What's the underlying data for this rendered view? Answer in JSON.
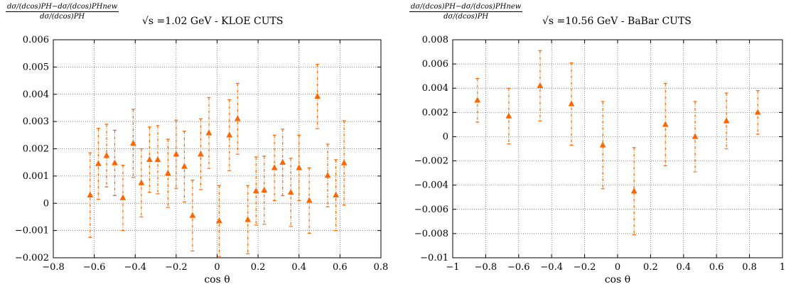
{
  "chart_data": [
    {
      "type": "scatter",
      "title": "√s =1.02 GeV - KLOE CUTS",
      "ylabel_numerator": "dσ/(dcos)PH−dσ/(dcos)PHnew",
      "ylabel_denominator": "dσ/(dcos)PH",
      "xlabel": "cos θ",
      "xlim": [
        -0.8,
        0.8
      ],
      "ylim": [
        -0.002,
        0.006
      ],
      "xticks": [
        -0.8,
        -0.6,
        -0.4,
        -0.2,
        0,
        0.2,
        0.4,
        0.6,
        0.8
      ],
      "xtick_labels": [
        "−0.8",
        "−0.6",
        "−0.4",
        "−0.2",
        "0",
        "0.2",
        "0.4",
        "0.6",
        "0.8"
      ],
      "yticks": [
        -0.002,
        -0.001,
        0,
        0.001,
        0.002,
        0.003,
        0.004,
        0.005,
        0.006
      ],
      "ytick_labels": [
        "−0.002",
        "−0.001",
        "0",
        "0.001",
        "0.002",
        "0.003",
        "0.004",
        "0.005",
        "0.006"
      ],
      "grid": true,
      "color": "#ff6600",
      "points": [
        {
          "x": -0.62,
          "y": 0.0003,
          "err": 0.00155
        },
        {
          "x": -0.58,
          "y": 0.00145,
          "err": 0.0013
        },
        {
          "x": -0.54,
          "y": 0.00175,
          "err": 0.00115
        },
        {
          "x": -0.5,
          "y": 0.00148,
          "err": 0.0012
        },
        {
          "x": -0.46,
          "y": 0.0002,
          "err": 0.0012
        },
        {
          "x": -0.41,
          "y": 0.0022,
          "err": 0.00125
        },
        {
          "x": -0.37,
          "y": 0.00075,
          "err": 0.00125
        },
        {
          "x": -0.33,
          "y": 0.0016,
          "err": 0.0012
        },
        {
          "x": -0.29,
          "y": 0.0016,
          "err": 0.00125
        },
        {
          "x": -0.24,
          "y": 0.0011,
          "err": 0.00125
        },
        {
          "x": -0.2,
          "y": 0.0018,
          "err": 0.00125
        },
        {
          "x": -0.16,
          "y": 0.00135,
          "err": 0.0013
        },
        {
          "x": -0.12,
          "y": -0.00045,
          "err": 0.0013
        },
        {
          "x": -0.08,
          "y": 0.0018,
          "err": 0.0013
        },
        {
          "x": -0.04,
          "y": 0.00258,
          "err": 0.0013
        },
        {
          "x": 0.01,
          "y": -0.00065,
          "err": 0.0013
        },
        {
          "x": 0.06,
          "y": 0.0025,
          "err": 0.0013
        },
        {
          "x": 0.1,
          "y": 0.0031,
          "err": 0.0013
        },
        {
          "x": 0.15,
          "y": -0.0006,
          "err": 0.00125
        },
        {
          "x": 0.19,
          "y": 0.00045,
          "err": 0.00125
        },
        {
          "x": 0.23,
          "y": 0.00048,
          "err": 0.00125
        },
        {
          "x": 0.28,
          "y": 0.0013,
          "err": 0.0012
        },
        {
          "x": 0.32,
          "y": 0.0015,
          "err": 0.00122
        },
        {
          "x": 0.36,
          "y": 0.0004,
          "err": 0.00125
        },
        {
          "x": 0.4,
          "y": 0.0013,
          "err": 0.0012
        },
        {
          "x": 0.45,
          "y": 0.0001,
          "err": 0.0012
        },
        {
          "x": 0.49,
          "y": 0.00392,
          "err": 0.00118
        },
        {
          "x": 0.54,
          "y": 0.00102,
          "err": 0.00115
        },
        {
          "x": 0.58,
          "y": 0.0003,
          "err": 0.0013
        },
        {
          "x": 0.62,
          "y": 0.00148,
          "err": 0.00155
        }
      ]
    },
    {
      "type": "scatter",
      "title": "√s =10.56 GeV - BaBar CUTS",
      "ylabel_numerator": "dσ/(dcos)PH−dσ/(dcos)PHnew",
      "ylabel_denominator": "dσ/(dcos)PH",
      "xlabel": "cos θ",
      "xlim": [
        -1,
        1
      ],
      "ylim": [
        -0.01,
        0.008
      ],
      "xticks": [
        -1,
        -0.8,
        -0.6,
        -0.4,
        -0.2,
        0,
        0.2,
        0.4,
        0.6,
        0.8,
        1
      ],
      "xtick_labels": [
        "−1",
        "−0.8",
        "−0.6",
        "−0.4",
        "−0.2",
        "0",
        "0.2",
        "0.4",
        "0.6",
        "0.8",
        "1"
      ],
      "yticks": [
        -0.01,
        -0.008,
        -0.006,
        -0.004,
        -0.002,
        0,
        0.002,
        0.004,
        0.006,
        0.008
      ],
      "ytick_labels": [
        "−0.01",
        "−0.008",
        "−0.006",
        "−0.004",
        "−0.002",
        "0",
        "0.002",
        "0.004",
        "0.006",
        "0.008"
      ],
      "grid": true,
      "color": "#ff6600",
      "points": [
        {
          "x": -0.85,
          "y": 0.003,
          "err": 0.0018
        },
        {
          "x": -0.66,
          "y": 0.0017,
          "err": 0.0023
        },
        {
          "x": -0.47,
          "y": 0.0042,
          "err": 0.0029
        },
        {
          "x": -0.28,
          "y": 0.0027,
          "err": 0.0034
        },
        {
          "x": -0.09,
          "y": -0.0007,
          "err": 0.0036
        },
        {
          "x": 0.1,
          "y": -0.0045,
          "err": 0.0036
        },
        {
          "x": 0.29,
          "y": 0.001,
          "err": 0.0034
        },
        {
          "x": 0.47,
          "y": 0.0,
          "err": 0.0029
        },
        {
          "x": 0.66,
          "y": 0.0013,
          "err": 0.0023
        },
        {
          "x": 0.85,
          "y": 0.002,
          "err": 0.0018
        }
      ]
    }
  ]
}
